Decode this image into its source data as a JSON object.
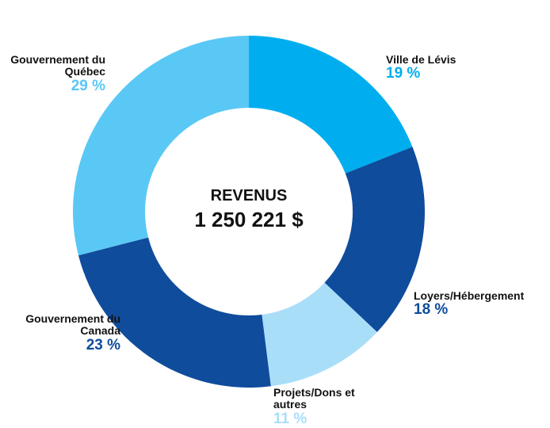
{
  "chart_data": {
    "type": "donut",
    "center_title": "REVENUS",
    "center_text": "1 250 221 $",
    "categories": [
      "Ville de Lévis",
      "Loyers/Hébergement",
      "Projets/Dons et autres",
      "Gouvernement du Canada",
      "Gouvernement du Québec"
    ],
    "values": [
      19,
      18,
      11,
      23,
      29
    ],
    "value_labels": [
      "19 %",
      "18 %",
      "11 %",
      "23 %",
      "29 %"
    ],
    "colors": [
      "#00aeef",
      "#0f4c9c",
      "#a9def9",
      "#0f4c9c",
      "#5ac8f5"
    ]
  }
}
